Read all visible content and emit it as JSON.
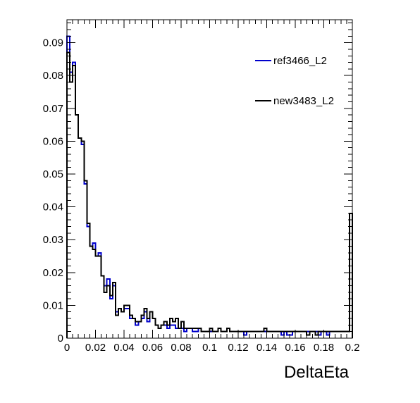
{
  "chart_data": {
    "type": "line",
    "style": "step-histogram",
    "xlabel": "DeltaEta",
    "ylabel": "",
    "xlim": [
      0,
      0.2
    ],
    "ylim": [
      0,
      0.097
    ],
    "x_ticks": [
      0,
      0.02,
      0.04,
      0.06,
      0.08,
      0.1,
      0.12,
      0.14,
      0.16,
      0.18,
      0.2
    ],
    "x_tick_labels": [
      "0",
      "0.02",
      "0.04",
      "0.06",
      "0.08",
      "0.1",
      "0.12",
      "0.14",
      "0.16",
      "0.18",
      "0.2"
    ],
    "y_ticks": [
      0,
      0.01,
      0.02,
      0.03,
      0.04,
      0.05,
      0.06,
      0.07,
      0.08,
      0.09
    ],
    "y_tick_labels": [
      "0",
      "0.01",
      "0.02",
      "0.03",
      "0.04",
      "0.05",
      "0.06",
      "0.07",
      "0.08",
      "0.09"
    ],
    "grid": false,
    "legend_position": "top-right",
    "bin_width": 0.002,
    "series": [
      {
        "name": "ref3466_L2",
        "color": "#0000cc",
        "values": [
          0.092,
          0.081,
          0.084,
          0.068,
          0.061,
          0.059,
          0.047,
          0.034,
          0.028,
          0.029,
          0.025,
          0.026,
          0.019,
          0.016,
          0.018,
          0.012,
          0.016,
          0.008,
          0.009,
          0.008,
          0.009,
          0.009,
          0.006,
          0.006,
          0.004,
          0.005,
          0.006,
          0.008,
          0.005,
          0.008,
          0.006,
          0.004,
          0.003,
          0.004,
          0.004,
          0.003,
          0.004,
          0.004,
          0.003,
          0.003,
          0.003,
          0.002,
          0.003,
          0.003,
          0.002,
          0.002,
          0.003,
          0.002,
          0.002,
          0.002,
          0.002,
          0.002,
          0.002,
          0.003,
          0.002,
          0.002,
          0.003,
          0.002,
          0.002,
          0.002,
          0.002,
          0.002,
          0.001,
          0.002,
          0.002,
          0.002,
          0.002,
          0.002,
          0.002,
          0.002,
          0.002,
          0.002,
          0.002,
          0.002,
          0.002,
          0.001,
          0.002,
          0.001,
          0.001,
          0.002,
          0.002,
          0.002,
          0.002,
          0.002,
          0.002,
          0.002,
          0.002,
          0.002,
          0.001,
          0.002,
          0.002,
          0.001,
          0.002,
          0.002,
          0.002,
          0.002,
          0.002,
          0.002,
          0.002,
          0.038
        ]
      },
      {
        "name": "new3483_L2",
        "color": "#000000",
        "values": [
          0.087,
          0.078,
          0.083,
          0.068,
          0.061,
          0.06,
          0.048,
          0.035,
          0.028,
          0.027,
          0.025,
          0.025,
          0.019,
          0.014,
          0.016,
          0.013,
          0.017,
          0.007,
          0.009,
          0.008,
          0.01,
          0.01,
          0.007,
          0.006,
          0.005,
          0.005,
          0.007,
          0.009,
          0.006,
          0.008,
          0.006,
          0.004,
          0.003,
          0.004,
          0.005,
          0.004,
          0.006,
          0.005,
          0.006,
          0.003,
          0.005,
          0.003,
          0.003,
          0.003,
          0.003,
          0.003,
          0.003,
          0.002,
          0.002,
          0.002,
          0.003,
          0.002,
          0.002,
          0.003,
          0.002,
          0.002,
          0.003,
          0.002,
          0.002,
          0.002,
          0.002,
          0.002,
          0.002,
          0.002,
          0.002,
          0.002,
          0.002,
          0.002,
          0.002,
          0.003,
          0.002,
          0.002,
          0.002,
          0.002,
          0.002,
          0.002,
          0.002,
          0.002,
          0.002,
          0.002,
          0.002,
          0.002,
          0.002,
          0.002,
          0.001,
          0.002,
          0.002,
          0.001,
          0.002,
          0.002,
          0.002,
          0.002,
          0.002,
          0.002,
          0.002,
          0.002,
          0.002,
          0.002,
          0.002,
          0.038
        ]
      }
    ]
  }
}
